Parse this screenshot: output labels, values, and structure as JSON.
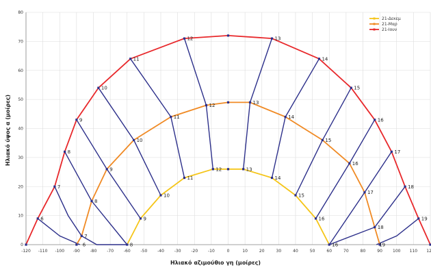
{
  "chart_data": {
    "type": "line",
    "xlabel": "Ηλιακό αζιμούθιο γη (μοίρες)",
    "ylabel": "Ηλιακό ύψος α (μοίρες)",
    "xlim": [
      -120,
      120
    ],
    "ylim": [
      0,
      80
    ],
    "x_ticks": [
      -120,
      -110,
      -100,
      -90,
      -80,
      -70,
      -60,
      -50,
      -40,
      -30,
      -20,
      -10,
      0,
      10,
      20,
      30,
      40,
      50,
      60,
      70,
      80,
      90,
      100,
      110,
      120
    ],
    "y_ticks": [
      0,
      10,
      20,
      30,
      40,
      50,
      60,
      70,
      80
    ],
    "grid": true,
    "legend_position": "top-right",
    "series": [
      {
        "name": "21-Δεκεμ",
        "color": "#f5c518",
        "points": [
          [
            -60,
            0
          ],
          [
            -52,
            9
          ],
          [
            -40,
            17
          ],
          [
            -26,
            23
          ],
          [
            -9,
            26
          ],
          [
            0,
            26
          ],
          [
            9,
            26
          ],
          [
            26,
            23
          ],
          [
            40,
            17
          ],
          [
            52,
            9
          ],
          [
            60,
            0
          ]
        ]
      },
      {
        "name": "21-Μαρ",
        "color": "#f08a24",
        "points": [
          [
            -90,
            0
          ],
          [
            -87,
            3
          ],
          [
            -81,
            15
          ],
          [
            -72,
            26
          ],
          [
            -56,
            36
          ],
          [
            -34,
            44
          ],
          [
            -13,
            48
          ],
          [
            0,
            49
          ],
          [
            13,
            49
          ],
          [
            34,
            44
          ],
          [
            56,
            36
          ],
          [
            72,
            28
          ],
          [
            81,
            18
          ],
          [
            87,
            6
          ],
          [
            90,
            0
          ]
        ]
      },
      {
        "name": "21-Ιουν",
        "color": "#e8282b",
        "points": [
          [
            -120,
            0
          ],
          [
            -113,
            9
          ],
          [
            -103,
            20
          ],
          [
            -97,
            32
          ],
          [
            -90,
            43
          ],
          [
            -77,
            54
          ],
          [
            -58,
            64
          ],
          [
            -26,
            71
          ],
          [
            0,
            72
          ],
          [
            26,
            71
          ],
          [
            54,
            64
          ],
          [
            73,
            54
          ],
          [
            87,
            43
          ],
          [
            97,
            32
          ],
          [
            105,
            20
          ],
          [
            113,
            9
          ],
          [
            120,
            0
          ]
        ]
      }
    ],
    "hour_lines": [
      {
        "hour": "6",
        "points": [
          [
            -113,
            9
          ],
          [
            -100,
            3
          ],
          [
            -88,
            0
          ]
        ]
      },
      {
        "hour": "7",
        "points": [
          [
            -103,
            20
          ],
          [
            -95,
            10
          ],
          [
            -87,
            3
          ],
          [
            -78,
            0
          ],
          [
            -60,
            0
          ]
        ]
      },
      {
        "hour": "8",
        "points": [
          [
            -97,
            32
          ],
          [
            -81,
            15
          ],
          [
            -60,
            0
          ]
        ]
      },
      {
        "hour": "9",
        "points": [
          [
            -90,
            43
          ],
          [
            -72,
            26
          ],
          [
            -52,
            9
          ]
        ]
      },
      {
        "hour": "10",
        "points": [
          [
            -77,
            54
          ],
          [
            -56,
            36
          ],
          [
            -40,
            17
          ]
        ]
      },
      {
        "hour": "11",
        "points": [
          [
            -58,
            64
          ],
          [
            -34,
            44
          ],
          [
            -26,
            23
          ]
        ]
      },
      {
        "hour": "12",
        "points": [
          [
            -26,
            71
          ],
          [
            -13,
            48
          ],
          [
            -9,
            26
          ]
        ]
      },
      {
        "hour": "13",
        "points": [
          [
            26,
            71
          ],
          [
            13,
            49
          ],
          [
            9,
            26
          ]
        ]
      },
      {
        "hour": "14",
        "points": [
          [
            54,
            64
          ],
          [
            34,
            44
          ],
          [
            26,
            23
          ]
        ]
      },
      {
        "hour": "15",
        "points": [
          [
            73,
            54
          ],
          [
            56,
            36
          ],
          [
            40,
            17
          ]
        ]
      },
      {
        "hour": "16",
        "points": [
          [
            87,
            43
          ],
          [
            72,
            28
          ],
          [
            52,
            9
          ]
        ]
      },
      {
        "hour": "17",
        "points": [
          [
            97,
            32
          ],
          [
            81,
            18
          ],
          [
            60,
            0
          ]
        ]
      },
      {
        "hour": "18",
        "points": [
          [
            105,
            20
          ],
          [
            87,
            6
          ],
          [
            60,
            0
          ]
        ]
      },
      {
        "hour": "19",
        "points": [
          [
            113,
            9
          ],
          [
            100,
            3
          ],
          [
            88,
            0
          ]
        ]
      }
    ],
    "point_labels": [
      {
        "text": "6",
        "x": -113,
        "y": 9
      },
      {
        "text": "7",
        "x": -103,
        "y": 20
      },
      {
        "text": "8",
        "x": -97,
        "y": 32
      },
      {
        "text": "9",
        "x": -90,
        "y": 43
      },
      {
        "text": "10",
        "x": -77,
        "y": 54
      },
      {
        "text": "11",
        "x": -58,
        "y": 64
      },
      {
        "text": "12",
        "x": -26,
        "y": 71
      },
      {
        "text": "13",
        "x": 26,
        "y": 71
      },
      {
        "text": "14",
        "x": 54,
        "y": 64
      },
      {
        "text": "15",
        "x": 73,
        "y": 54
      },
      {
        "text": "16",
        "x": 87,
        "y": 43
      },
      {
        "text": "17",
        "x": 97,
        "y": 32
      },
      {
        "text": "18",
        "x": 105,
        "y": 20
      },
      {
        "text": "19",
        "x": 113,
        "y": 9
      },
      {
        "text": "7",
        "x": -87,
        "y": 3
      },
      {
        "text": "8",
        "x": -81,
        "y": 15
      },
      {
        "text": "9",
        "x": -72,
        "y": 26
      },
      {
        "text": "10",
        "x": -56,
        "y": 36
      },
      {
        "text": "11",
        "x": -34,
        "y": 44
      },
      {
        "text": "12",
        "x": -13,
        "y": 48
      },
      {
        "text": "13",
        "x": 13,
        "y": 49
      },
      {
        "text": "14",
        "x": 34,
        "y": 44
      },
      {
        "text": "15",
        "x": 56,
        "y": 36
      },
      {
        "text": "16",
        "x": 72,
        "y": 28
      },
      {
        "text": "17",
        "x": 81,
        "y": 18
      },
      {
        "text": "18",
        "x": 87,
        "y": 6
      },
      {
        "text": "9",
        "x": -52,
        "y": 9
      },
      {
        "text": "10",
        "x": -40,
        "y": 17
      },
      {
        "text": "11",
        "x": -26,
        "y": 23
      },
      {
        "text": "12",
        "x": -9,
        "y": 26
      },
      {
        "text": "13",
        "x": 9,
        "y": 26
      },
      {
        "text": "14",
        "x": 26,
        "y": 23
      },
      {
        "text": "15",
        "x": 40,
        "y": 17
      },
      {
        "text": "16",
        "x": 52,
        "y": 9
      },
      {
        "text": "8",
        "x": -60,
        "y": 0
      },
      {
        "text": "6",
        "x": -88,
        "y": 0
      },
      {
        "text": "16",
        "x": 60,
        "y": 0
      },
      {
        "text": "19",
        "x": 88,
        "y": 0
      }
    ],
    "hour_line_color": "#2c2f8a"
  }
}
